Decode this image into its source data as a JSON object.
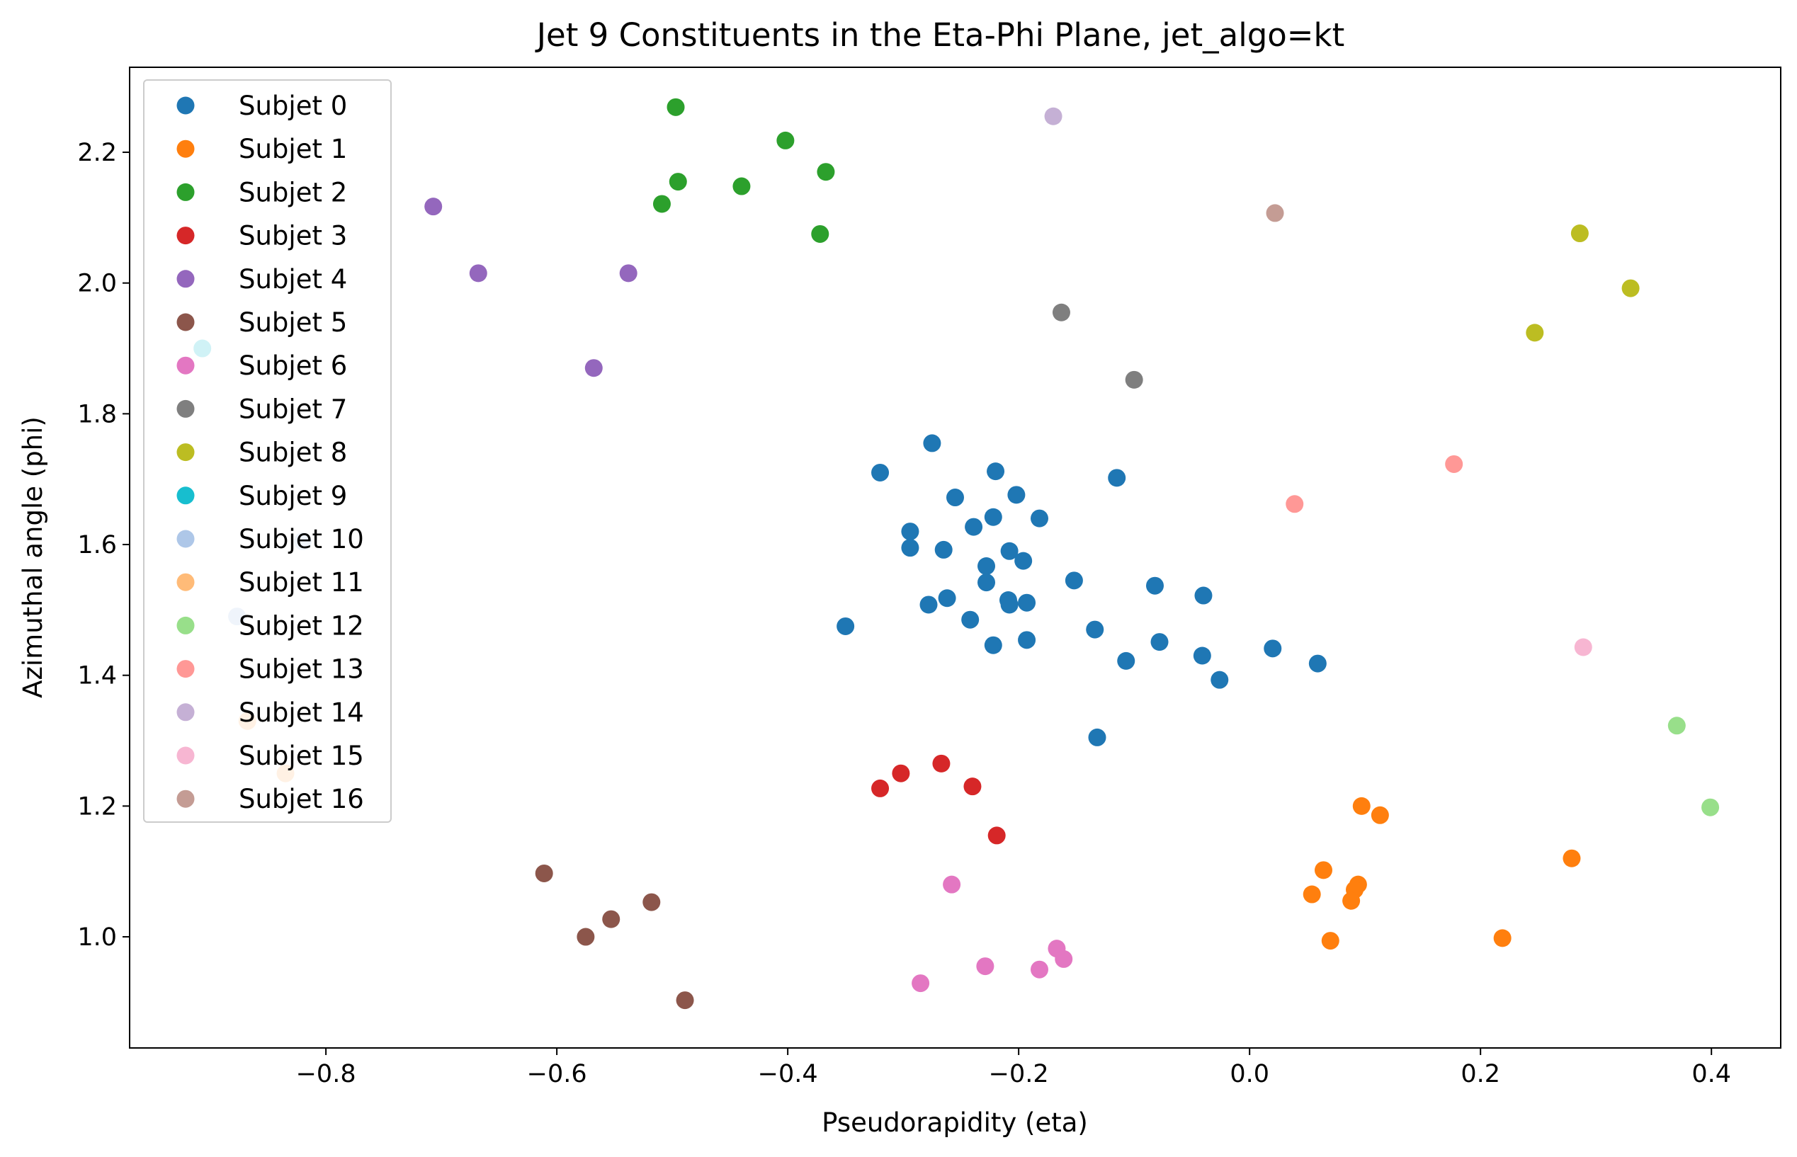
{
  "chart_data": {
    "type": "scatter",
    "title": "Jet 9 Constituents in the Eta-Phi Plane, jet_algo=kt",
    "xlabel": "Pseudorapidity (eta)",
    "ylabel": "Azimuthal angle (phi)",
    "xlim": [
      -0.97,
      0.46
    ],
    "ylim": [
      0.83,
      2.33
    ],
    "xticks": [
      -0.8,
      -0.6,
      -0.4,
      -0.2,
      0.0,
      0.2,
      0.4
    ],
    "xtick_labels": [
      "−0.8",
      "−0.6",
      "−0.4",
      "−0.2",
      "0.0",
      "0.2",
      "0.4"
    ],
    "yticks": [
      1.0,
      1.2,
      1.4,
      1.6,
      1.8,
      2.0,
      2.2
    ],
    "ytick_labels": [
      "1.0",
      "1.2",
      "1.4",
      "1.6",
      "1.8",
      "2.0",
      "2.2"
    ],
    "grid": false,
    "legend_position": "top-left",
    "series": [
      {
        "name": "Subjet 0",
        "color": "#1f77b4",
        "points": [
          [
            -0.275,
            1.755
          ],
          [
            -0.32,
            1.71
          ],
          [
            -0.22,
            1.712
          ],
          [
            -0.115,
            1.702
          ],
          [
            -0.255,
            1.672
          ],
          [
            -0.202,
            1.676
          ],
          [
            -0.222,
            1.642
          ],
          [
            -0.182,
            1.64
          ],
          [
            -0.239,
            1.627
          ],
          [
            -0.294,
            1.62
          ],
          [
            -0.294,
            1.595
          ],
          [
            -0.265,
            1.592
          ],
          [
            -0.208,
            1.59
          ],
          [
            -0.196,
            1.575
          ],
          [
            -0.228,
            1.567
          ],
          [
            -0.152,
            1.545
          ],
          [
            -0.228,
            1.542
          ],
          [
            -0.082,
            1.537
          ],
          [
            -0.04,
            1.522
          ],
          [
            -0.262,
            1.518
          ],
          [
            -0.209,
            1.515
          ],
          [
            -0.193,
            1.511
          ],
          [
            -0.208,
            1.508
          ],
          [
            -0.278,
            1.508
          ],
          [
            -0.242,
            1.485
          ],
          [
            -0.35,
            1.475
          ],
          [
            -0.134,
            1.47
          ],
          [
            -0.078,
            1.451
          ],
          [
            -0.193,
            1.454
          ],
          [
            -0.222,
            1.446
          ],
          [
            -0.041,
            1.43
          ],
          [
            0.02,
            1.441
          ],
          [
            -0.107,
            1.422
          ],
          [
            0.059,
            1.418
          ],
          [
            -0.026,
            1.393
          ],
          [
            -0.132,
            1.305
          ]
        ]
      },
      {
        "name": "Subjet 1",
        "color": "#ff7f0e",
        "points": [
          [
            0.097,
            1.2
          ],
          [
            0.113,
            1.186
          ],
          [
            0.279,
            1.12
          ],
          [
            0.064,
            1.102
          ],
          [
            0.094,
            1.08
          ],
          [
            0.091,
            1.072
          ],
          [
            0.054,
            1.065
          ],
          [
            0.088,
            1.055
          ],
          [
            0.07,
            0.994
          ],
          [
            0.219,
            0.998
          ]
        ]
      },
      {
        "name": "Subjet 2",
        "color": "#2ca02c",
        "points": [
          [
            -0.497,
            2.269
          ],
          [
            -0.402,
            2.218
          ],
          [
            -0.367,
            2.17
          ],
          [
            -0.495,
            2.155
          ],
          [
            -0.44,
            2.148
          ],
          [
            -0.509,
            2.121
          ],
          [
            -0.372,
            2.075
          ]
        ]
      },
      {
        "name": "Subjet 3",
        "color": "#d62728",
        "points": [
          [
            -0.267,
            1.265
          ],
          [
            -0.302,
            1.25
          ],
          [
            -0.24,
            1.23
          ],
          [
            -0.32,
            1.227
          ],
          [
            -0.219,
            1.155
          ]
        ]
      },
      {
        "name": "Subjet 4",
        "color": "#9467bd",
        "points": [
          [
            -0.707,
            2.117
          ],
          [
            -0.668,
            2.015
          ],
          [
            -0.538,
            2.015
          ],
          [
            -0.568,
            1.87
          ]
        ]
      },
      {
        "name": "Subjet 5",
        "color": "#8c564b",
        "points": [
          [
            -0.611,
            1.097
          ],
          [
            -0.518,
            1.053
          ],
          [
            -0.553,
            1.027
          ],
          [
            -0.575,
            1.0
          ],
          [
            -0.489,
            0.903
          ]
        ]
      },
      {
        "name": "Subjet 6",
        "color": "#e377c2",
        "points": [
          [
            -0.258,
            1.08
          ],
          [
            -0.167,
            0.982
          ],
          [
            -0.161,
            0.966
          ],
          [
            -0.229,
            0.955
          ],
          [
            -0.182,
            0.95
          ],
          [
            -0.285,
            0.929
          ]
        ]
      },
      {
        "name": "Subjet 7",
        "color": "#7f7f7f",
        "points": [
          [
            -0.163,
            1.955
          ],
          [
            -0.1,
            1.852
          ]
        ]
      },
      {
        "name": "Subjet 8",
        "color": "#bcbd22",
        "points": [
          [
            0.286,
            2.076
          ],
          [
            0.33,
            1.992
          ],
          [
            0.247,
            1.924
          ]
        ]
      },
      {
        "name": "Subjet 9",
        "color": "#17becf",
        "points": [
          [
            -0.907,
            1.9
          ]
        ]
      },
      {
        "name": "Subjet 10",
        "color": "#aec7e8",
        "points": [
          [
            -0.82,
            1.605
          ],
          [
            -0.877,
            1.49
          ]
        ]
      },
      {
        "name": "Subjet 11",
        "color": "#ffbb78",
        "points": [
          [
            -0.868,
            1.33
          ],
          [
            -0.835,
            1.25
          ]
        ]
      },
      {
        "name": "Subjet 12",
        "color": "#98df8a",
        "points": [
          [
            0.37,
            1.323
          ],
          [
            0.399,
            1.198
          ]
        ]
      },
      {
        "name": "Subjet 13",
        "color": "#ff9896",
        "points": [
          [
            0.177,
            1.723
          ],
          [
            0.039,
            1.662
          ]
        ]
      },
      {
        "name": "Subjet 14",
        "color": "#c5b0d5",
        "points": [
          [
            -0.17,
            2.255
          ]
        ]
      },
      {
        "name": "Subjet 15",
        "color": "#f7b6d2",
        "points": [
          [
            0.289,
            1.443
          ]
        ]
      },
      {
        "name": "Subjet 16",
        "color": "#c49c94",
        "points": [
          [
            0.022,
            2.107
          ]
        ]
      }
    ]
  }
}
